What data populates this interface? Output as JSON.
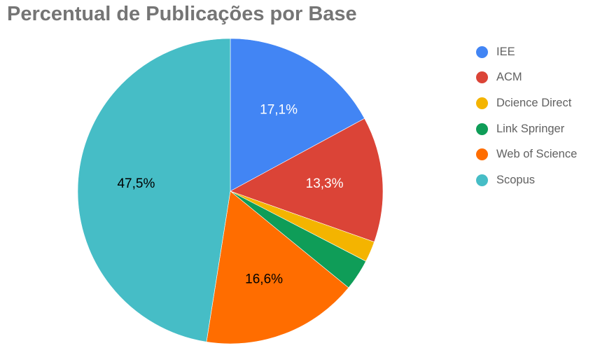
{
  "chart_data": {
    "type": "pie",
    "title": "Percentual de Publicações por Base",
    "legend_position": "right",
    "slices": [
      {
        "name": "IEE",
        "value": 17.1,
        "label": "17,1%",
        "color": "#4285f4",
        "label_color": "#ffffff"
      },
      {
        "name": "ACM",
        "value": 13.3,
        "label": "13,3%",
        "color": "#db4437",
        "label_color": "#ffffff"
      },
      {
        "name": "Dcience Direct",
        "value": 2.2,
        "label": "",
        "color": "#f4b400",
        "label_color": "#ffffff"
      },
      {
        "name": "Link Springer",
        "value": 3.3,
        "label": "",
        "color": "#0f9d58",
        "label_color": "#ffffff"
      },
      {
        "name": "Web of Science",
        "value": 16.6,
        "label": "16,6%",
        "color": "#ff6d00",
        "label_color": "#000000"
      },
      {
        "name": "Scopus",
        "value": 47.5,
        "label": "47,5%",
        "color": "#46bdc6",
        "label_color": "#000000"
      }
    ]
  }
}
